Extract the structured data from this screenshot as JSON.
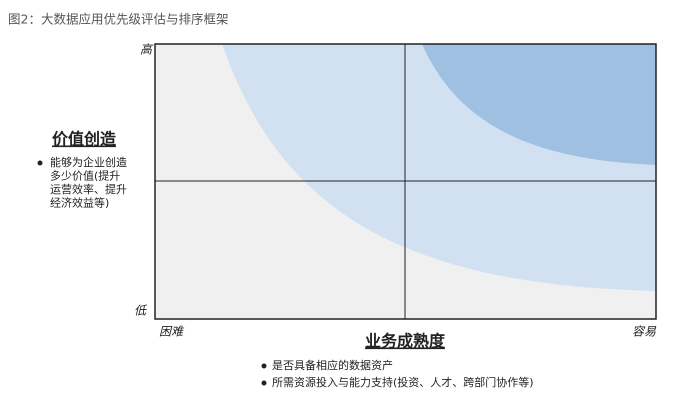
{
  "header": {
    "title": "图2：大数据应用优先级评估与排序框架"
  },
  "y_axis": {
    "title": "价值创造",
    "high": "高",
    "low": "低",
    "bullet_lines": [
      "能够为企业创造",
      "多少价值(提升",
      "运营效率、提升",
      "经济效益等)"
    ]
  },
  "x_axis": {
    "title": "业务成熟度",
    "start": "困难",
    "end": "容易",
    "bullets": [
      "是否具备相应的数据资产",
      "所需资源投入与能力支持(投资、人才、跨部门协作等)"
    ]
  }
}
